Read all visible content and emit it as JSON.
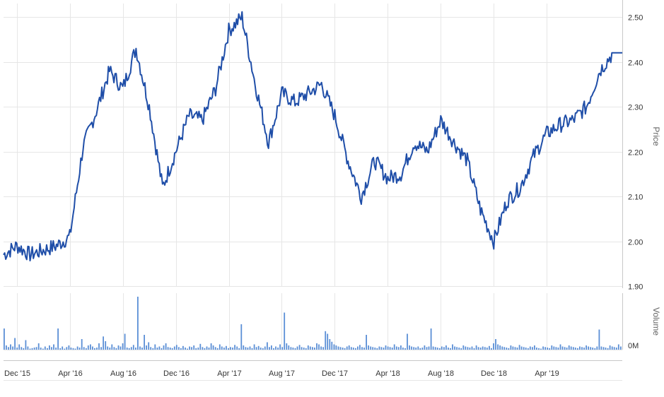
{
  "chart_data": {
    "type": "line",
    "title": "",
    "price_panel": {
      "ylabel": "Price",
      "ylim": [
        1.9,
        2.53
      ],
      "y_ticks": [
        "1.90",
        "2.00",
        "2.10",
        "2.20",
        "2.30",
        "2.40",
        "2.50"
      ],
      "series": [
        {
          "color": "#1f4ea8",
          "x": [
            "2015-11",
            "2015-12",
            "2016-01",
            "2016-02",
            "2016-03",
            "2016-04",
            "2016-05",
            "2016-06",
            "2016-07",
            "2016-08",
            "2016-09",
            "2016-10",
            "2016-11",
            "2016-12",
            "2017-01",
            "2017-02",
            "2017-03",
            "2017-04",
            "2017-05",
            "2017-06",
            "2017-07",
            "2017-08",
            "2017-09",
            "2017-10",
            "2017-11",
            "2017-12",
            "2018-01",
            "2018-02",
            "2018-03",
            "2018-04",
            "2018-05",
            "2018-06",
            "2018-07",
            "2018-08",
            "2018-09",
            "2018-10",
            "2018-11",
            "2018-12",
            "2019-01",
            "2019-02",
            "2019-03",
            "2019-04",
            "2019-05",
            "2019-06",
            "2019-07",
            "2019-08",
            "2019-09"
          ],
          "values": [
            1.97,
            1.99,
            1.97,
            1.98,
            1.99,
            2.01,
            2.21,
            2.29,
            2.38,
            2.34,
            2.43,
            2.3,
            2.12,
            2.2,
            2.28,
            2.27,
            2.34,
            2.47,
            2.5,
            2.35,
            2.22,
            2.33,
            2.31,
            2.33,
            2.35,
            2.28,
            2.18,
            2.1,
            2.18,
            2.14,
            2.15,
            2.22,
            2.2,
            2.27,
            2.22,
            2.18,
            2.07,
            2.0,
            2.09,
            2.12,
            2.19,
            2.24,
            2.26,
            2.27,
            2.3,
            2.38,
            2.42
          ]
        }
      ]
    },
    "volume_panel": {
      "ylabel": "Volume",
      "y_ticks": [
        "0M"
      ],
      "ylim": [
        0,
        100
      ],
      "values": [
        40,
        8,
        5,
        10,
        6,
        22,
        4,
        10,
        5,
        3,
        18,
        6,
        2,
        3,
        4,
        5,
        12,
        4,
        2,
        6,
        3,
        8,
        5,
        10,
        4,
        40,
        3,
        6,
        2,
        5,
        8,
        4,
        3,
        2,
        6,
        4,
        20,
        5,
        3,
        8,
        10,
        6,
        3,
        4,
        12,
        5,
        25,
        16,
        6,
        4,
        10,
        5,
        3,
        8,
        6,
        12,
        30,
        4,
        3,
        5,
        9,
        4,
        100,
        6,
        4,
        28,
        8,
        14,
        5,
        3,
        10,
        4,
        6,
        3,
        8,
        12,
        5,
        4,
        3,
        6,
        9,
        5,
        3,
        7,
        4,
        2,
        6,
        5,
        8,
        3,
        4,
        11,
        5,
        3,
        6,
        4,
        12,
        8,
        5,
        3,
        10,
        6,
        4,
        7,
        3,
        5,
        4,
        9,
        6,
        3,
        48,
        8,
        5,
        4,
        6,
        3,
        10,
        5,
        7,
        4,
        3,
        6,
        14,
        5,
        8,
        3,
        6,
        4,
        10,
        5,
        70,
        12,
        8,
        5,
        4,
        3,
        6,
        9,
        5,
        4,
        3,
        8,
        6,
        5,
        4,
        12,
        10,
        6,
        5,
        35,
        30,
        20,
        15,
        10,
        8,
        6,
        5,
        4,
        3,
        6,
        8,
        5,
        4,
        3,
        6,
        9,
        5,
        4,
        28,
        8,
        6,
        5,
        4,
        3,
        6,
        5,
        4,
        8,
        6,
        5,
        4,
        10,
        6,
        5,
        8,
        4,
        3,
        30,
        8,
        6,
        5,
        4,
        6,
        3,
        4,
        8,
        5,
        6,
        40,
        6,
        5,
        4,
        3,
        6,
        5,
        8,
        4,
        3,
        10,
        6,
        5,
        4,
        3,
        8,
        6,
        5,
        4,
        6,
        3,
        8,
        5,
        4,
        6,
        5,
        4,
        7,
        3,
        12,
        20,
        10,
        8,
        6,
        5,
        4,
        3,
        8,
        6,
        5,
        4,
        9,
        6,
        5,
        4,
        3,
        6,
        5,
        8,
        4,
        3,
        2,
        6,
        5,
        4,
        3,
        8,
        6,
        5,
        4,
        10,
        6,
        5,
        4,
        8,
        6,
        5,
        4,
        3,
        6,
        5,
        4,
        8,
        6,
        5,
        4,
        3,
        6,
        38,
        6,
        5,
        4,
        3,
        8,
        6,
        5,
        4,
        10,
        6
      ]
    },
    "x_tick_labels": [
      "Dec '15",
      "Apr '16",
      "Aug '16",
      "Dec '16",
      "Apr '17",
      "Aug '17",
      "Dec '17",
      "Apr '18",
      "Aug '18",
      "Dec '18",
      "Apr '19"
    ],
    "grid": true,
    "legend": "none"
  }
}
